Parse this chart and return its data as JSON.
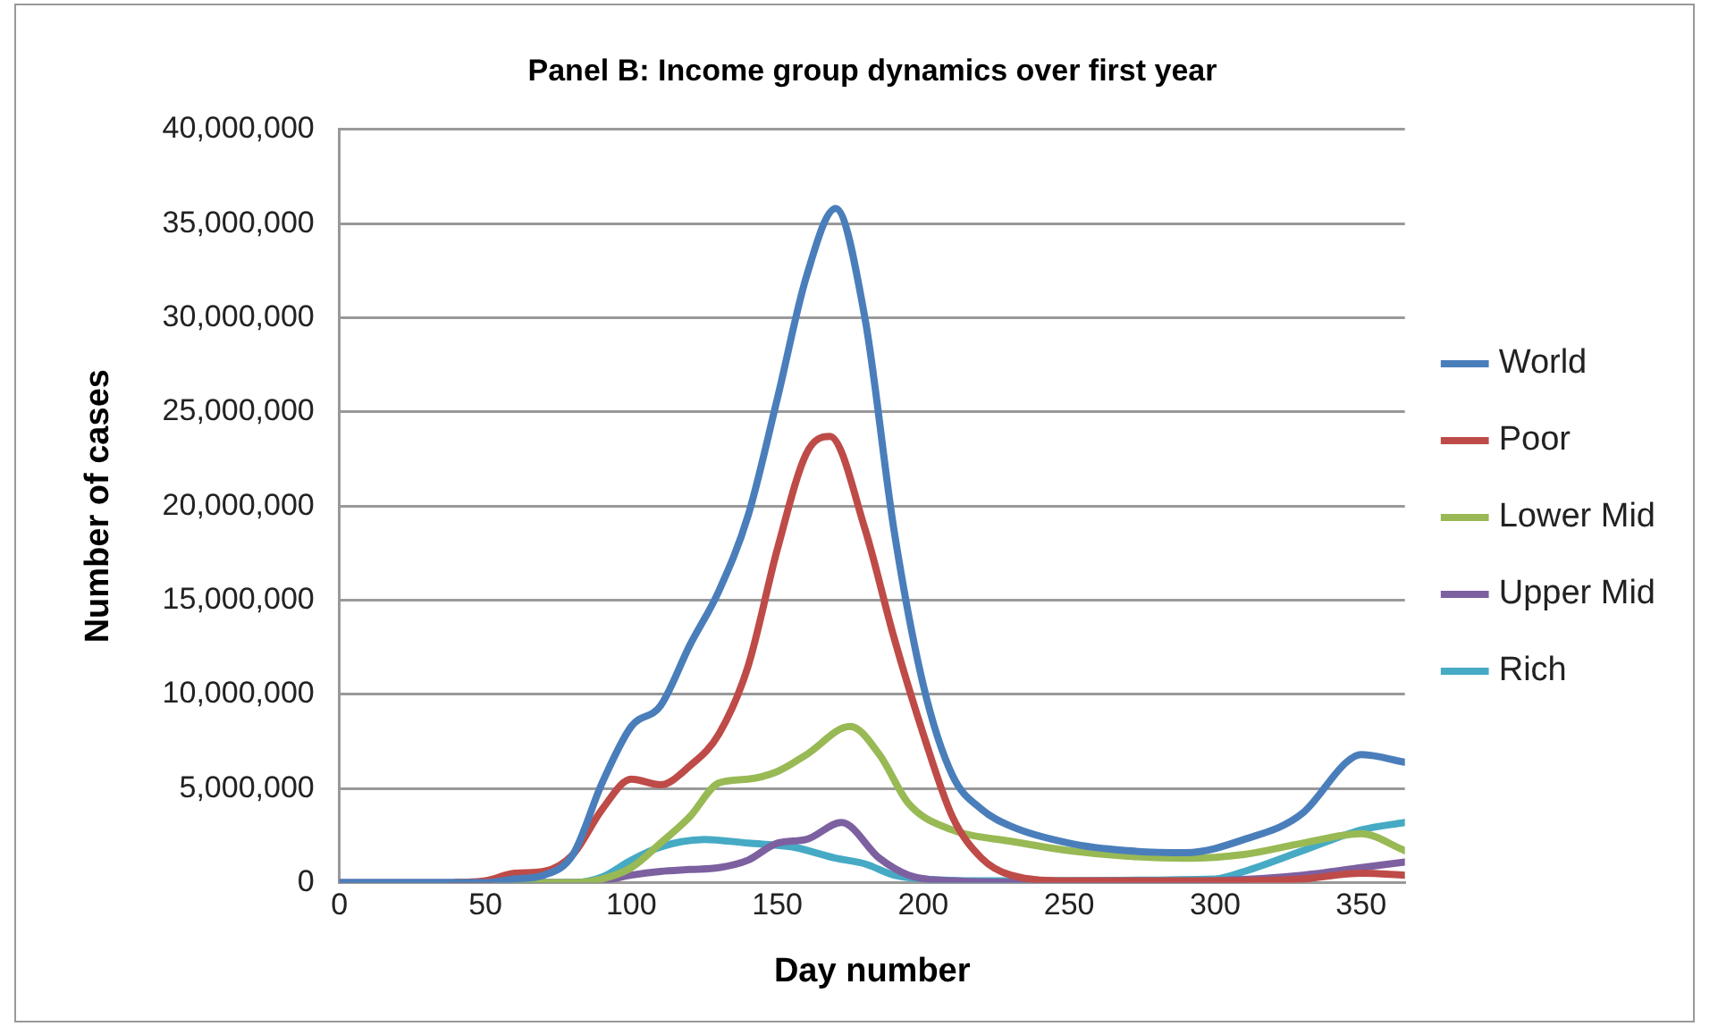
{
  "chart_data": {
    "type": "line",
    "title": "Panel B: Income group dynamics over first year",
    "xlabel": "Day number",
    "ylabel": "Number of cases",
    "xlim": [
      0,
      365
    ],
    "xticks": [
      0,
      50,
      100,
      150,
      200,
      250,
      300,
      350
    ],
    "ylim": [
      0,
      40000000
    ],
    "yticks": [
      {
        "value": 0,
        "label": "0"
      },
      {
        "value": 5000000,
        "label": "5,000,000"
      },
      {
        "value": 10000000,
        "label": "10,000,000"
      },
      {
        "value": 15000000,
        "label": "15,000,000"
      },
      {
        "value": 20000000,
        "label": "20,000,000"
      },
      {
        "value": 25000000,
        "label": "25,000,000"
      },
      {
        "value": 30000000,
        "label": "30,000,000"
      },
      {
        "value": 35000000,
        "label": "35,000,000"
      },
      {
        "value": 40000000,
        "label": "40,000,000"
      }
    ],
    "grid": "y",
    "legend": "right",
    "marker": "none",
    "line_style": "solid",
    "series": [
      {
        "name": "World",
        "color": "#4a7ebb",
        "x": [
          0,
          20,
          40,
          50,
          60,
          70,
          80,
          90,
          100,
          110,
          120,
          130,
          140,
          150,
          160,
          170,
          180,
          190,
          200,
          210,
          220,
          230,
          250,
          270,
          290,
          310,
          330,
          345,
          350,
          365
        ],
        "values": [
          0,
          0,
          0,
          0,
          200000,
          400000,
          1500000,
          5300000,
          8300000,
          9400000,
          12600000,
          15500000,
          19500000,
          25700000,
          32200000,
          35800000,
          30000000,
          18700000,
          10500000,
          5700000,
          3900000,
          3000000,
          2100000,
          1700000,
          1600000,
          2300000,
          3700000,
          6400000,
          6800000,
          6400000
        ]
      },
      {
        "name": "Poor",
        "color": "#be4b48",
        "x": [
          40,
          50,
          60,
          70,
          80,
          90,
          100,
          110,
          120,
          130,
          140,
          150,
          160,
          168,
          180,
          190,
          200,
          210,
          220,
          230,
          250,
          300,
          330,
          350,
          365
        ],
        "values": [
          0,
          100000,
          500000,
          600000,
          1500000,
          3900000,
          5500000,
          5200000,
          6200000,
          7900000,
          11500000,
          17700000,
          22800000,
          23700000,
          18800000,
          13000000,
          7900000,
          3500000,
          1300000,
          400000,
          100000,
          100000,
          200000,
          500000,
          400000
        ]
      },
      {
        "name": "Lower Mid",
        "color": "#98b954",
        "x": [
          40,
          60,
          80,
          90,
          100,
          110,
          120,
          130,
          140,
          150,
          160,
          175,
          185,
          195,
          210,
          230,
          250,
          270,
          290,
          310,
          330,
          350,
          365
        ],
        "values": [
          0,
          0,
          0,
          200000,
          800000,
          2100000,
          3500000,
          5300000,
          5500000,
          5900000,
          6800000,
          8300000,
          6800000,
          4200000,
          2800000,
          2200000,
          1700000,
          1400000,
          1300000,
          1500000,
          2100000,
          2600000,
          1700000
        ]
      },
      {
        "name": "Upper Mid",
        "color": "#7d60a0",
        "x": [
          0,
          20,
          40,
          60,
          80,
          90,
          100,
          110,
          120,
          130,
          140,
          150,
          160,
          172,
          185,
          195,
          210,
          250,
          300,
          330,
          350,
          365
        ],
        "values": [
          0,
          0,
          0,
          0,
          0,
          100000,
          400000,
          600000,
          700000,
          800000,
          1200000,
          2100000,
          2300000,
          3200000,
          1300000,
          400000,
          100000,
          0,
          100000,
          400000,
          800000,
          1100000
        ]
      },
      {
        "name": "Rich",
        "color": "#46aac5",
        "x": [
          40,
          60,
          80,
          90,
          100,
          110,
          125,
          140,
          155,
          170,
          180,
          190,
          200,
          220,
          300,
          310,
          330,
          350,
          365
        ],
        "values": [
          0,
          0,
          0,
          300000,
          1200000,
          1900000,
          2300000,
          2100000,
          1900000,
          1300000,
          1000000,
          400000,
          200000,
          100000,
          200000,
          600000,
          1700000,
          2800000,
          3200000
        ]
      }
    ]
  }
}
